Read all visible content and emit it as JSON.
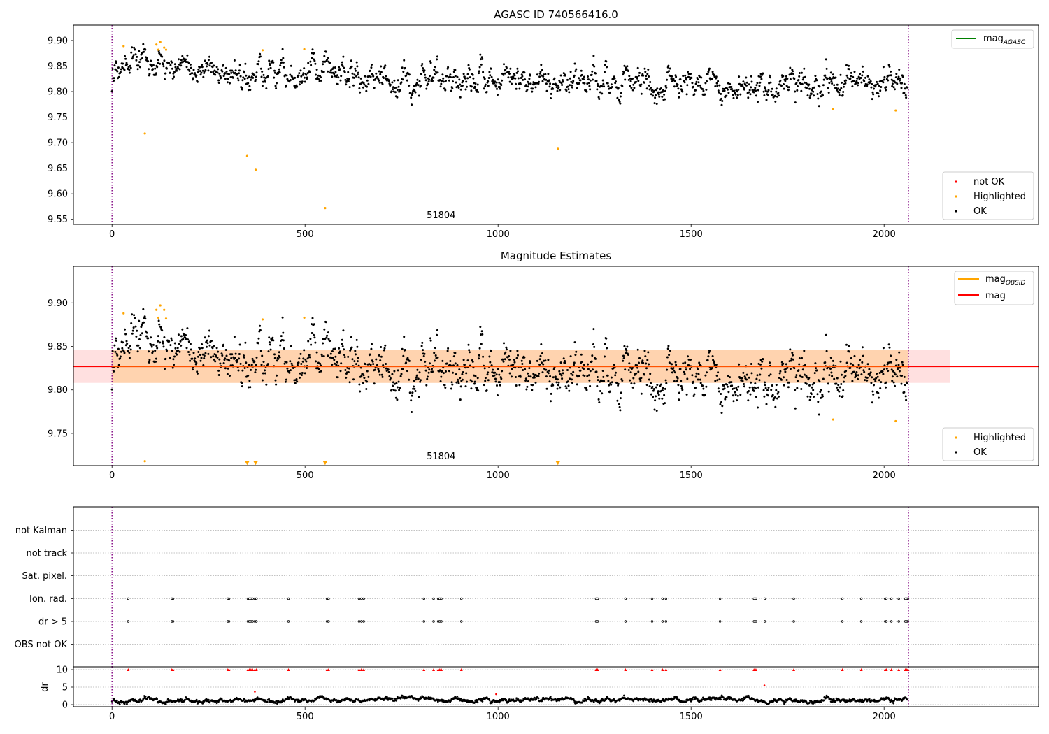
{
  "chart_data": [
    {
      "id": "panel1",
      "type": "scatter",
      "title": "AGASC ID 740566416.0",
      "xlim": [
        -100,
        2400
      ],
      "ylim": [
        9.54,
        9.93
      ],
      "xticks": [
        0,
        500,
        1000,
        1500,
        2000
      ],
      "yticks": [
        9.55,
        9.6,
        9.65,
        9.7,
        9.75,
        9.8,
        9.85,
        9.9
      ],
      "ytick_labels": [
        "9.55",
        "9.60",
        "9.65",
        "9.70",
        "9.75",
        "9.80",
        "9.85",
        "9.90"
      ],
      "obsid_lines": [
        0,
        2063
      ],
      "obsid_label": "51804",
      "obsid_label_x": 1030,
      "grid": false,
      "legend_lines": {
        "position": "top-right",
        "entries": [
          {
            "label": "mag",
            "sub": "AGASC",
            "color": "#008000"
          }
        ]
      },
      "legend_points": {
        "position": "bottom-right",
        "entries": [
          {
            "label": "not OK",
            "color": "#ff0000"
          },
          {
            "label": "Highlighted",
            "color": "#ffa500"
          },
          {
            "label": "OK",
            "color": "#000000"
          }
        ]
      },
      "ok_series": {
        "name": "OK",
        "x_start": 0,
        "x_end": 2060,
        "n": 1480,
        "seed": 11,
        "trend": [
          [
            0,
            9.853
          ],
          [
            200,
            9.842
          ],
          [
            350,
            9.837
          ],
          [
            600,
            9.832
          ],
          [
            800,
            9.82
          ],
          [
            1000,
            9.824
          ],
          [
            1200,
            9.826
          ],
          [
            1400,
            9.815
          ],
          [
            1600,
            9.818
          ],
          [
            1800,
            9.815
          ],
          [
            2060,
            9.812
          ]
        ],
        "scatter": 0.016
      },
      "highlighted": [
        [
          30,
          9.889
        ],
        [
          85,
          9.718
        ],
        [
          115,
          9.892
        ],
        [
          125,
          9.897
        ],
        [
          135,
          9.886
        ],
        [
          140,
          9.882
        ],
        [
          120,
          9.882
        ],
        [
          350,
          9.674
        ],
        [
          372,
          9.647
        ],
        [
          390,
          9.881
        ],
        [
          498,
          9.883
        ],
        [
          552,
          9.572
        ],
        [
          1155,
          9.688
        ],
        [
          1868,
          9.766
        ],
        [
          2030,
          9.763
        ]
      ]
    },
    {
      "id": "panel2",
      "type": "scatter",
      "title": "Magnitude Estimates",
      "xlim": [
        -100,
        2400
      ],
      "ylim": [
        9.713,
        9.942
      ],
      "xticks": [
        0,
        500,
        1000,
        1500,
        2000
      ],
      "yticks": [
        9.75,
        9.8,
        9.85,
        9.9
      ],
      "ytick_labels": [
        "9.75",
        "9.80",
        "9.85",
        "9.90"
      ],
      "obsid_lines": [
        0,
        2063
      ],
      "obsid_label": "51804",
      "obsid_label_x": 1030,
      "mag": 9.827,
      "mag_band": [
        9.808,
        9.846
      ],
      "mag_band_x": [
        -100,
        2170
      ],
      "mag_obsid_band_x": [
        0,
        2063
      ],
      "legend_lines": {
        "position": "top-right",
        "entries": [
          {
            "label": "mag",
            "sub": "OBSID",
            "color": "#ffa500"
          },
          {
            "label": "mag",
            "sub": "",
            "color": "#ff0000"
          }
        ]
      },
      "legend_points": {
        "position": "bottom-right",
        "entries": [
          {
            "label": "Highlighted",
            "color": "#ffa500"
          },
          {
            "label": "OK",
            "color": "#000000"
          }
        ]
      },
      "highlighted": [
        [
          30,
          9.888
        ],
        [
          85,
          9.718
        ],
        [
          115,
          9.892
        ],
        [
          125,
          9.897
        ],
        [
          135,
          9.892
        ],
        [
          140,
          9.882
        ],
        [
          120,
          9.883
        ],
        [
          390,
          9.881
        ],
        [
          498,
          9.883
        ],
        [
          1868,
          9.766
        ],
        [
          2030,
          9.764
        ]
      ],
      "down_markers": [
        [
          350,
          9.716
        ],
        [
          372,
          9.716
        ],
        [
          552,
          9.716
        ],
        [
          1155,
          9.716
        ]
      ]
    },
    {
      "id": "panel3",
      "type": "scatter",
      "title": "",
      "xlim": [
        -100,
        2400
      ],
      "categories": [
        "not Kalman",
        "not track",
        "Sat. pixel.",
        "Ion. rad.",
        "dr > 5",
        "OBS not OK"
      ],
      "flag_x": [
        42,
        155,
        158,
        300,
        303,
        352,
        356,
        360,
        364,
        370,
        374,
        457,
        557,
        561,
        640,
        646,
        652,
        808,
        833,
        845,
        849,
        853,
        905,
        1254,
        1258,
        1330,
        1399,
        1426,
        1435,
        1575,
        1663,
        1668,
        1691,
        1766,
        1892,
        1941,
        2003,
        2006,
        2019,
        2038,
        2055,
        2059,
        2062
      ],
      "obsid_lines": [
        0,
        2063
      ]
    },
    {
      "id": "panel4",
      "type": "scatter",
      "title": "",
      "ylabel": "dr",
      "xlim": [
        -100,
        2400
      ],
      "ylim": [
        -0.6,
        10.8
      ],
      "xticks": [
        0,
        500,
        1000,
        1500,
        2000
      ],
      "yticks": [
        0,
        5,
        10
      ],
      "ytick_labels": [
        "0",
        "5",
        "10"
      ],
      "obsid_lines": [
        0,
        2063
      ],
      "dr_series": {
        "x_start": 0,
        "x_end": 2060,
        "n": 1450,
        "seed": 23,
        "base": 1.3,
        "scatter": 0.45
      },
      "red_points": [
        [
          370,
          3.7
        ],
        [
          995,
          3.0
        ],
        [
          1690,
          5.5
        ]
      ],
      "clipped_x": [
        42,
        155,
        158,
        300,
        303,
        352,
        356,
        360,
        364,
        370,
        374,
        457,
        557,
        561,
        640,
        646,
        652,
        808,
        833,
        845,
        849,
        853,
        905,
        1254,
        1258,
        1330,
        1399,
        1426,
        1435,
        1575,
        1663,
        1668,
        1766,
        1892,
        1941,
        2003,
        2006,
        2019,
        2038,
        2055,
        2059,
        2062
      ],
      "clipped_value": 10
    }
  ]
}
